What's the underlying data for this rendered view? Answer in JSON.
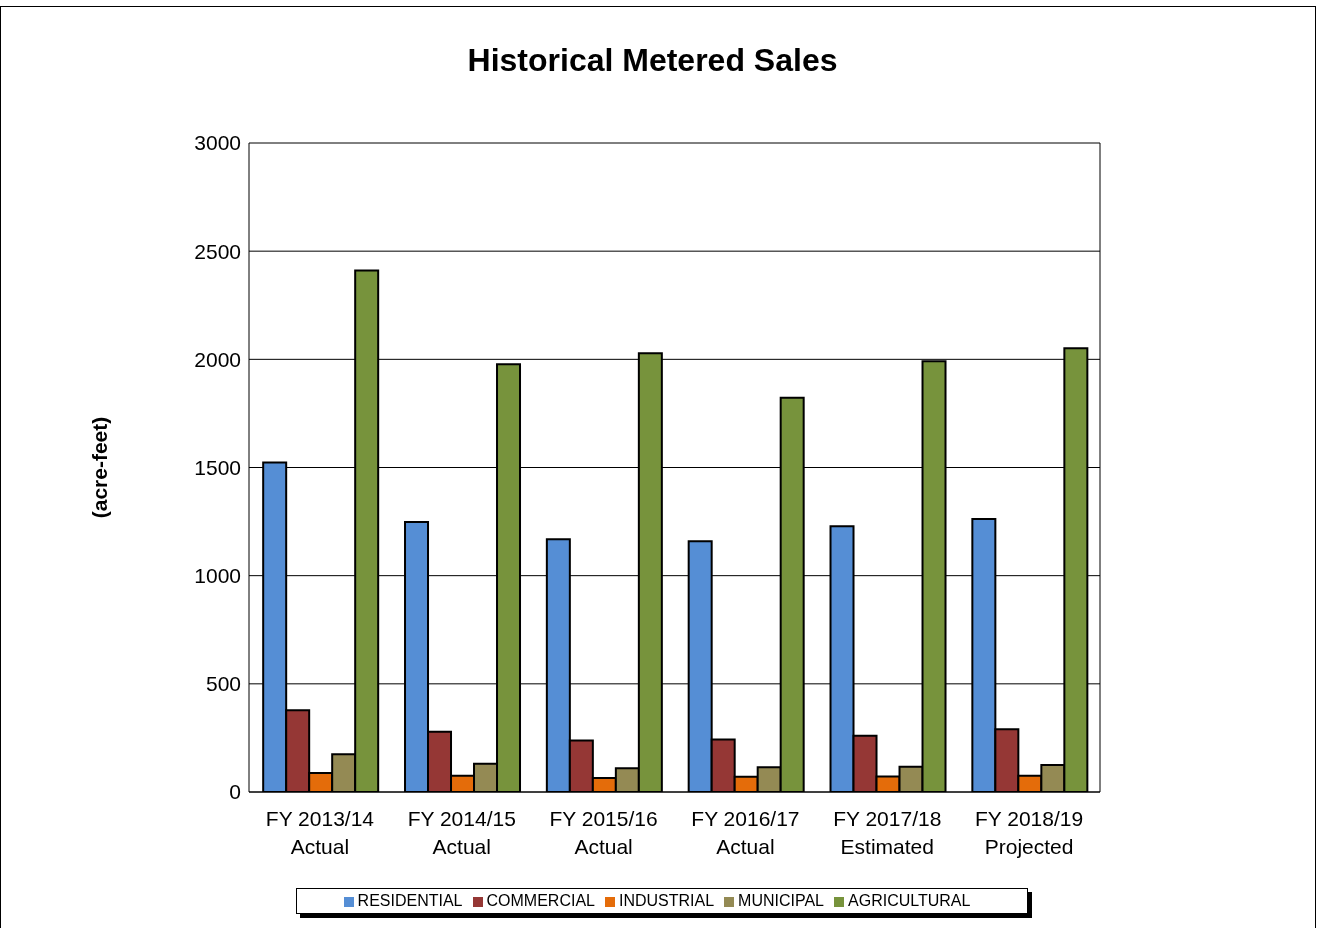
{
  "chart_data": {
    "type": "bar",
    "title": "Historical Metered Sales",
    "ylabel": "(acre-feet)",
    "categories": [
      "FY 2013/14\nActual",
      "FY 2014/15\nActual",
      "FY 2015/16\nActual",
      "FY 2016/17\nActual",
      "FY 2017/18\nEstimated",
      "FY 2018/19\nProjected"
    ],
    "series": [
      {
        "name": "RESIDENTIAL",
        "color": "#558ed5",
        "values": [
          1523,
          1248,
          1168,
          1159,
          1229,
          1262
        ]
      },
      {
        "name": "COMMERCIAL",
        "color": "#953735",
        "values": [
          378,
          278,
          238,
          243,
          260,
          290
        ]
      },
      {
        "name": "INDUSTRIAL",
        "color": "#e46c0a",
        "values": [
          88,
          75,
          65,
          70,
          72,
          75
        ]
      },
      {
        "name": "MUNICIPAL",
        "color": "#948a54",
        "values": [
          174,
          131,
          110,
          114,
          117,
          125
        ]
      },
      {
        "name": "AGRICULTURAL",
        "color": "#77933c",
        "values": [
          2411,
          1977,
          2028,
          1822,
          1991,
          2051
        ]
      }
    ],
    "ylim": [
      0,
      3000
    ],
    "yticks": [
      0,
      500,
      1000,
      1500,
      2000,
      2500,
      3000
    ],
    "grid": "y",
    "legend": "bottom"
  }
}
